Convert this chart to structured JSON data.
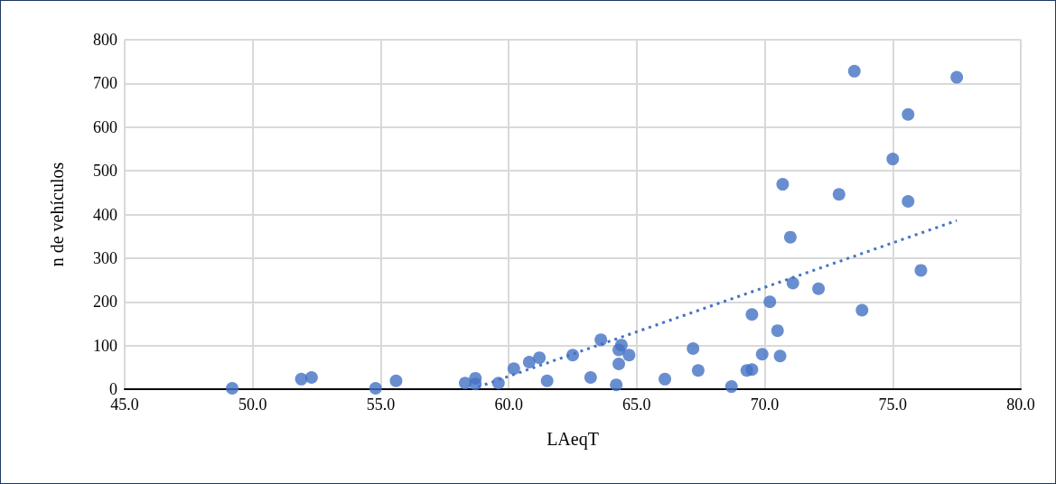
{
  "chart_data": {
    "type": "scatter",
    "xlabel": "LAeqT",
    "ylabel": "n de vehículos",
    "xlim": [
      45,
      80
    ],
    "xticks": [
      {
        "value": 45,
        "label": "45.0"
      },
      {
        "value": 50,
        "label": "50.0"
      },
      {
        "value": 55,
        "label": "55.0"
      },
      {
        "value": 60,
        "label": "60.0"
      },
      {
        "value": 65,
        "label": "65.0"
      },
      {
        "value": 70,
        "label": "70.0"
      },
      {
        "value": 75,
        "label": "75.0"
      },
      {
        "value": 80,
        "label": "80.0"
      }
    ],
    "ylim": [
      0,
      800
    ],
    "yticks": [
      0,
      100,
      200,
      300,
      400,
      500,
      600,
      700,
      800
    ],
    "grid": true,
    "series": [
      {
        "color": "#4472c4",
        "marker": "circle",
        "x": [
          49.2,
          51.9,
          52.3,
          54.8,
          55.6,
          58.3,
          58.7,
          58.7,
          59.6,
          60.2,
          60.8,
          61.2,
          61.5,
          62.5,
          63.2,
          63.6,
          64.3,
          64.4,
          64.3,
          64.2,
          64.7,
          66.1,
          67.2,
          67.4,
          68.7,
          69.3,
          69.5,
          69.5,
          69.9,
          70.2,
          70.5,
          70.6,
          70.7,
          71.0,
          71.1,
          72.1,
          72.9,
          73.5,
          73.8,
          75.0,
          75.6,
          75.6,
          76.1,
          77.5
        ],
        "values": [
          2,
          23,
          27,
          2,
          19,
          14,
          25,
          12,
          14,
          47,
          62,
          72,
          19,
          78,
          27,
          113,
          90,
          101,
          58,
          10,
          78,
          23,
          93,
          43,
          6,
          43,
          45,
          171,
          80,
          200,
          134,
          76,
          469,
          348,
          243,
          230,
          446,
          728,
          181,
          527,
          430,
          629,
          272,
          714
        ]
      },
      {
        "type": "line",
        "color": "#4472c4",
        "line_style": "dotted",
        "marker": "none",
        "x": [
          58.8,
          77.5
        ],
        "values": [
          5,
          386
        ]
      }
    ]
  }
}
